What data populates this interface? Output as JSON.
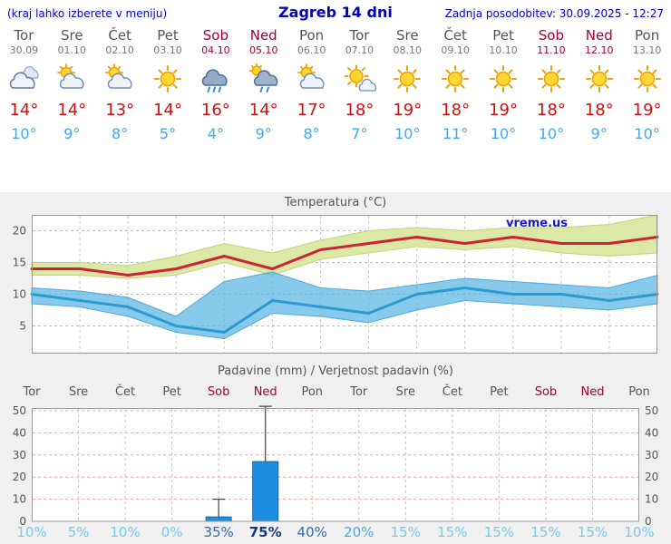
{
  "header": {
    "left_note": "(kraj lahko izberete v meniju)",
    "title": "Zagreb 14 dni",
    "updated": "Zadnja posodobitev: 30.09.2025 - 12:27"
  },
  "days": [
    {
      "name": "Tor",
      "date": "30.09",
      "icon": "cloudy",
      "high": "14°",
      "low": "10°",
      "weekend": false
    },
    {
      "name": "Sre",
      "date": "01.10",
      "icon": "partly-cloudy",
      "high": "14°",
      "low": "9°",
      "weekend": false
    },
    {
      "name": "Čet",
      "date": "02.10",
      "icon": "partly-cloudy",
      "high": "13°",
      "low": "8°",
      "weekend": false
    },
    {
      "name": "Pet",
      "date": "03.10",
      "icon": "sunny",
      "high": "14°",
      "low": "5°",
      "weekend": false
    },
    {
      "name": "Sob",
      "date": "04.10",
      "icon": "rain",
      "high": "16°",
      "low": "4°",
      "weekend": true
    },
    {
      "name": "Ned",
      "date": "05.10",
      "icon": "showers",
      "high": "14°",
      "low": "9°",
      "weekend": true
    },
    {
      "name": "Pon",
      "date": "06.10",
      "icon": "partly-cloudy",
      "high": "17°",
      "low": "8°",
      "weekend": false
    },
    {
      "name": "Tor",
      "date": "07.10",
      "icon": "mostly-sunny",
      "high": "18°",
      "low": "7°",
      "weekend": false
    },
    {
      "name": "Sre",
      "date": "08.10",
      "icon": "sunny",
      "high": "19°",
      "low": "10°",
      "weekend": false
    },
    {
      "name": "Čet",
      "date": "09.10",
      "icon": "sunny",
      "high": "18°",
      "low": "11°",
      "weekend": false
    },
    {
      "name": "Pet",
      "date": "10.10",
      "icon": "sunny",
      "high": "19°",
      "low": "10°",
      "weekend": false
    },
    {
      "name": "Sob",
      "date": "11.10",
      "icon": "sunny",
      "high": "18°",
      "low": "10°",
      "weekend": true
    },
    {
      "name": "Ned",
      "date": "12.10",
      "icon": "sunny",
      "high": "18°",
      "low": "9°",
      "weekend": true
    },
    {
      "name": "Pon",
      "date": "13.10",
      "icon": "sunny",
      "high": "19°",
      "low": "10°",
      "weekend": false
    }
  ],
  "chart_data": [
    {
      "type": "line",
      "title": "Temperatura (°C)",
      "watermark": "vreme.us",
      "x_labels": [
        "Tor 30.09",
        "Sre 01.10",
        "Čet 02.10",
        "Pet 03.10",
        "Sob 04.10",
        "Ned 05.10",
        "Pon 06.10",
        "Tor 07.10",
        "Sre 08.10",
        "Čet 09.10",
        "Pet 10.10",
        "Sob 11.10",
        "Ned 12.10",
        "Pon 13.10"
      ],
      "yticks": [
        5,
        10,
        15,
        20
      ],
      "ylim": [
        0.5,
        22.5
      ],
      "grid": true,
      "series": [
        {
          "name": "max-temp",
          "color": "#cc2233",
          "values": [
            14,
            14,
            13,
            14,
            16,
            14,
            17,
            18,
            19,
            18,
            19,
            18,
            18,
            19
          ]
        },
        {
          "name": "min-temp",
          "color": "#2d9ad2",
          "values": [
            10,
            9,
            8,
            5,
            4,
            9,
            8,
            7,
            10,
            11,
            10,
            10,
            9,
            10
          ]
        },
        {
          "name": "max-band-upper",
          "values": [
            15,
            15,
            14.5,
            16,
            18,
            16.5,
            18.5,
            20,
            20.5,
            20,
            20.5,
            20.5,
            21,
            22.5
          ]
        },
        {
          "name": "max-band-lower",
          "values": [
            13,
            13,
            12.5,
            13,
            15,
            13,
            15.5,
            16.5,
            17.5,
            17,
            17.5,
            16.5,
            16,
            16.5
          ]
        },
        {
          "name": "min-band-upper",
          "values": [
            11,
            10.5,
            9.5,
            6.5,
            12,
            13.5,
            11,
            10.5,
            11.5,
            12.5,
            12,
            11.5,
            11,
            13
          ]
        },
        {
          "name": "min-band-lower",
          "values": [
            8.5,
            8,
            6.5,
            4,
            3,
            7,
            6.5,
            5.5,
            7.5,
            9,
            8.5,
            8,
            7.5,
            8.5
          ]
        }
      ],
      "band_colors": {
        "max": "#dce9a6",
        "min": "#5ab6e4"
      }
    },
    {
      "type": "bar",
      "title": "Padavine (mm) / Verjetnost padavin (%)",
      "categories": [
        "Tor",
        "Sre",
        "Čet",
        "Pet",
        "Sob",
        "Ned",
        "Pon",
        "Tor",
        "Sre",
        "Čet",
        "Pet",
        "Sob",
        "Ned",
        "Pon"
      ],
      "weekend_indices": [
        4,
        5,
        11,
        12
      ],
      "precip_mm": [
        0,
        0,
        0,
        0,
        2,
        27,
        0,
        0,
        0,
        0,
        0,
        0,
        0,
        0
      ],
      "precip_max_mm": [
        0,
        0,
        0,
        0,
        10,
        52,
        0,
        0,
        0,
        0,
        0,
        0,
        0,
        0
      ],
      "probability_pct": [
        10,
        5,
        10,
        0,
        35,
        75,
        40,
        20,
        15,
        15,
        15,
        15,
        15,
        10
      ],
      "yticks": [
        0,
        10,
        20,
        30,
        40,
        50
      ],
      "ylim": [
        0,
        52
      ],
      "bar_color": "#1e8fe0"
    }
  ]
}
